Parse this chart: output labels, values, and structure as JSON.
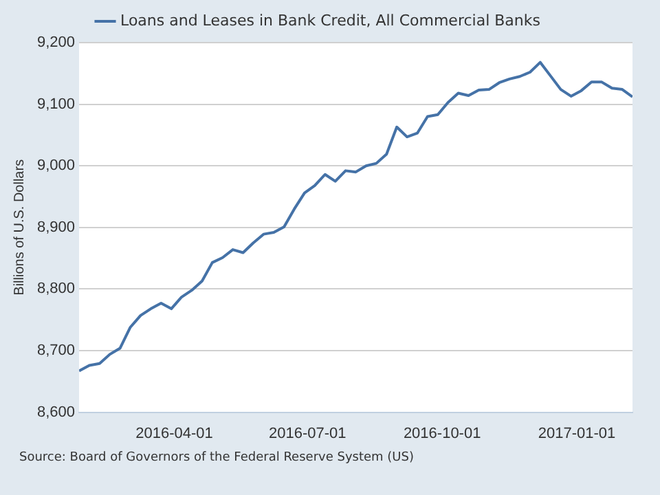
{
  "chart_data": {
    "type": "line",
    "ylabel": "Billions of U.S. Dollars",
    "legend": "top",
    "grid": "y",
    "marker": "none",
    "line_style": "solid",
    "annotations": [
      "Source: Board of Governors of the Federal Reserve System (US)"
    ],
    "x": [
      "2016-01-27",
      "2016-02-03",
      "2016-02-10",
      "2016-02-17",
      "2016-02-24",
      "2016-03-02",
      "2016-03-09",
      "2016-03-16",
      "2016-03-23",
      "2016-03-30",
      "2016-04-06",
      "2016-04-13",
      "2016-04-20",
      "2016-04-27",
      "2016-05-04",
      "2016-05-11",
      "2016-05-18",
      "2016-05-25",
      "2016-06-01",
      "2016-06-08",
      "2016-06-15",
      "2016-06-22",
      "2016-06-29",
      "2016-07-06",
      "2016-07-13",
      "2016-07-20",
      "2016-07-27",
      "2016-08-03",
      "2016-08-10",
      "2016-08-17",
      "2016-08-24",
      "2016-08-31",
      "2016-09-07",
      "2016-09-14",
      "2016-09-21",
      "2016-09-28",
      "2016-10-05",
      "2016-10-12",
      "2016-10-19",
      "2016-10-26",
      "2016-11-02",
      "2016-11-09",
      "2016-11-16",
      "2016-11-23",
      "2016-11-30",
      "2016-12-07",
      "2016-12-14",
      "2016-12-21",
      "2016-12-28",
      "2017-01-04",
      "2017-01-11",
      "2017-01-18",
      "2017-01-25",
      "2017-02-01",
      "2017-02-08"
    ],
    "series": [
      {
        "name": "Loans and Leases in Bank Credit, All Commercial Banks",
        "color": "#4572a7",
        "values": [
          8667,
          8676,
          8679,
          8694,
          8704,
          8738,
          8757,
          8768,
          8777,
          8768,
          8787,
          8798,
          8813,
          8843,
          8851,
          8864,
          8859,
          8875,
          8889,
          8892,
          8901,
          8930,
          8956,
          8968,
          8986,
          8975,
          8992,
          8990,
          9000,
          9004,
          9019,
          9063,
          9047,
          9053,
          9080,
          9083,
          9103,
          9118,
          9114,
          9123,
          9124,
          9135,
          9141,
          9145,
          9152,
          9168,
          9146,
          9124,
          9113,
          9122,
          9136,
          9136,
          9126,
          9124,
          9112
        ]
      }
    ],
    "xlim": [
      "2016-01-27",
      "2017-02-08"
    ],
    "xticks": [
      {
        "value": "2016-04-01",
        "label": "2016-04-01"
      },
      {
        "value": "2016-07-01",
        "label": "2016-07-01"
      },
      {
        "value": "2016-10-01",
        "label": "2016-10-01"
      },
      {
        "value": "2017-01-01",
        "label": "2017-01-01"
      }
    ],
    "ylim": [
      8600,
      9200
    ],
    "yticks": [
      {
        "value": 8600,
        "label": "8,600"
      },
      {
        "value": 8700,
        "label": "8,700"
      },
      {
        "value": 8800,
        "label": "8,800"
      },
      {
        "value": 8900,
        "label": "8,900"
      },
      {
        "value": 9000,
        "label": "9,000"
      },
      {
        "value": 9100,
        "label": "9,100"
      },
      {
        "value": 9200,
        "label": "9,200"
      }
    ]
  }
}
